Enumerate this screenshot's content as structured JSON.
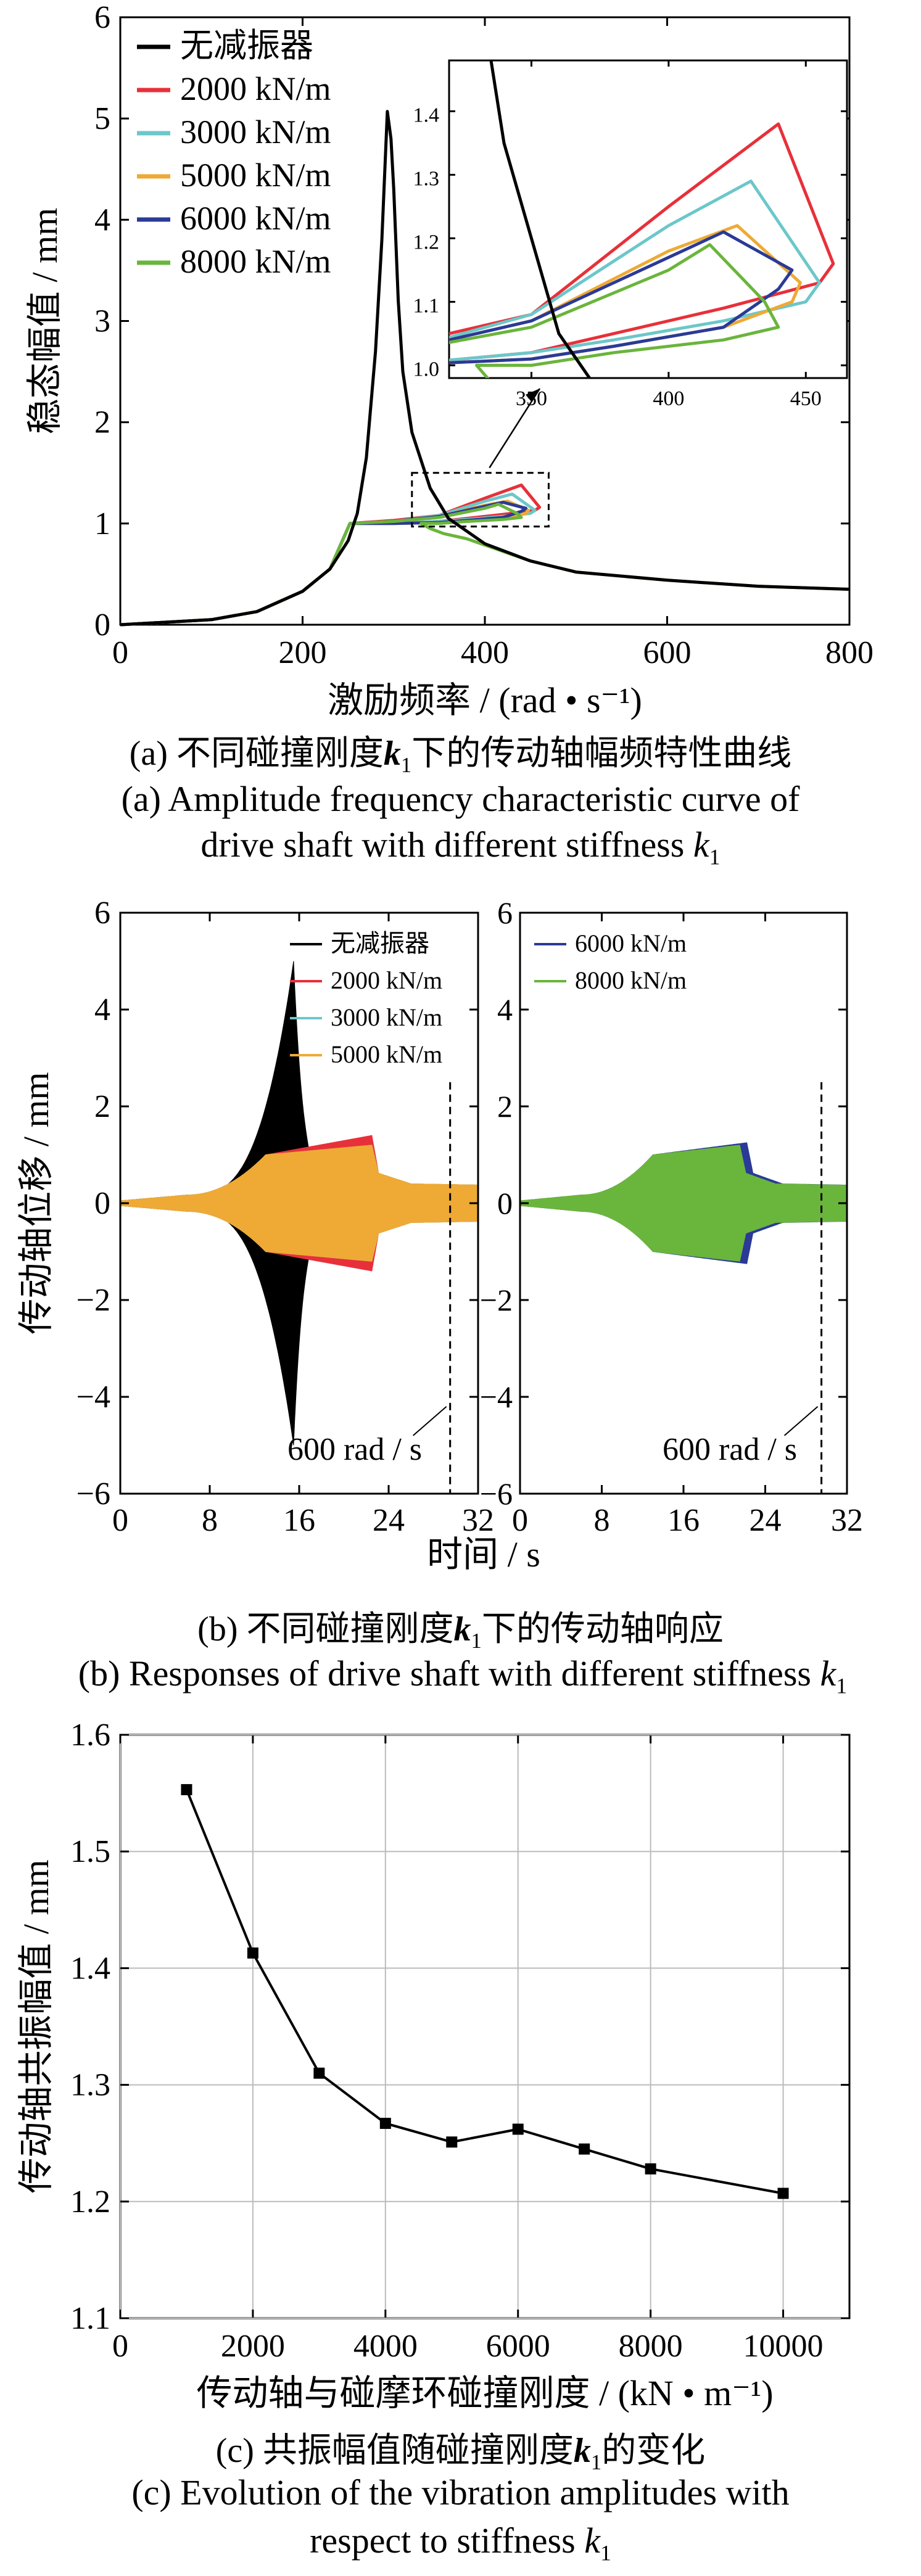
{
  "colors": {
    "none": "#000000",
    "k2000": "#e8303a",
    "k3000": "#6cc7c9",
    "k5000": "#eeaa35",
    "k6000": "#2a3a96",
    "k8000": "#6ab53c"
  },
  "panel_a": {
    "caption_cn_prefix": "(a)  不同碰撞刚度",
    "caption_cn_suffix": "下的传动轴幅频特性曲线",
    "caption_en_line1": "(a) Amplitude frequency characteristic curve of",
    "caption_en_line2": "drive shaft with different stiffness",
    "k_symbol": "k",
    "k_sub": "1"
  },
  "panel_b": {
    "caption_cn_prefix": "(b)  不同碰撞刚度",
    "caption_cn_suffix": "下的传动轴响应",
    "caption_en": "(b) Responses of drive shaft with different stiffness",
    "k_symbol": "k",
    "k_sub": "1"
  },
  "panel_c": {
    "caption_cn_prefix": "(c)  共振幅值随碰撞刚度",
    "caption_cn_suffix": "的变化",
    "caption_en_line1": "(c) Evolution of the vibration amplitudes with",
    "caption_en_line2": "respect to stiffness",
    "k_symbol": "k",
    "k_sub": "1"
  },
  "chart_data": [
    {
      "id": "a",
      "type": "line",
      "xlabel": "激励频率 / (rad • s⁻¹)",
      "ylabel": "稳态幅值 / mm",
      "xlim": [
        0,
        800
      ],
      "ylim": [
        0,
        6
      ],
      "xticks": [
        0,
        200,
        400,
        600,
        800
      ],
      "yticks": [
        0,
        1,
        2,
        3,
        4,
        5,
        6
      ],
      "legend": "top-left",
      "series": [
        {
          "name": "无减振器",
          "color_key": "none",
          "x": [
            0,
            100,
            150,
            200,
            230,
            250,
            260,
            270,
            280,
            287,
            293,
            297,
            300,
            305,
            310,
            320,
            340,
            360,
            400,
            450,
            500,
            600,
            700,
            800
          ],
          "y": [
            0,
            0.05,
            0.13,
            0.33,
            0.55,
            0.83,
            1.1,
            1.65,
            2.7,
            3.8,
            5.07,
            4.8,
            4.3,
            3.2,
            2.5,
            1.9,
            1.35,
            1.05,
            0.8,
            0.63,
            0.52,
            0.44,
            0.38,
            0.35
          ]
        },
        {
          "name": "2000 kN/m",
          "color_key": "k2000",
          "x": [
            0,
            100,
            150,
            200,
            230,
            252,
            300,
            350,
            400,
            440,
            460,
            455,
            420,
            380,
            350,
            300,
            252
          ],
          "y": [
            0,
            0.05,
            0.13,
            0.33,
            0.55,
            1.0,
            1.03,
            1.08,
            1.25,
            1.38,
            1.16,
            1.13,
            1.09,
            1.05,
            1.02,
            1.0,
            1.0
          ]
        },
        {
          "name": "3000 kN/m",
          "color_key": "k3000",
          "x": [
            0,
            100,
            150,
            200,
            230,
            252,
            300,
            350,
            400,
            430,
            455,
            450,
            420,
            380,
            350,
            300,
            252
          ],
          "y": [
            0,
            0.05,
            0.13,
            0.33,
            0.55,
            1.0,
            1.02,
            1.08,
            1.22,
            1.29,
            1.13,
            1.1,
            1.07,
            1.04,
            1.02,
            1.0,
            1.0
          ]
        },
        {
          "name": "5000 kN/m",
          "color_key": "k5000",
          "x": [
            0,
            100,
            150,
            200,
            230,
            252,
            300,
            350,
            400,
            425,
            448,
            445,
            420,
            380,
            350,
            300,
            252
          ],
          "y": [
            0,
            0.05,
            0.13,
            0.33,
            0.55,
            1.0,
            1.02,
            1.07,
            1.18,
            1.22,
            1.13,
            1.1,
            1.06,
            1.03,
            1.01,
            1.0,
            1.0
          ]
        },
        {
          "name": "6000 kN/m",
          "color_key": "k6000",
          "x": [
            0,
            100,
            150,
            200,
            230,
            252,
            300,
            350,
            400,
            420,
            445,
            440,
            420,
            380,
            350,
            300,
            252
          ],
          "y": [
            0,
            0.05,
            0.13,
            0.33,
            0.55,
            1.0,
            1.02,
            1.07,
            1.17,
            1.21,
            1.15,
            1.12,
            1.06,
            1.03,
            1.01,
            1.0,
            1.0
          ]
        },
        {
          "name": "8000 kN/m",
          "color_key": "k8000",
          "x": [
            0,
            100,
            150,
            200,
            230,
            252,
            300,
            350,
            400,
            415,
            435,
            440,
            420,
            380,
            350,
            330,
            340,
            355,
            380,
            450,
            500,
            600,
            700,
            800
          ],
          "y": [
            0,
            0.05,
            0.13,
            0.33,
            0.55,
            1.0,
            1.02,
            1.06,
            1.15,
            1.19,
            1.1,
            1.06,
            1.04,
            1.02,
            1.0,
            1.0,
            0.95,
            0.9,
            0.85,
            0.63,
            0.52,
            0.44,
            0.38,
            0.35
          ]
        }
      ],
      "inset": {
        "xlim": [
          320,
          465
        ],
        "ylim": [
          0.98,
          1.48
        ],
        "xticks": [
          350,
          400,
          450
        ],
        "yticks": [
          1.0,
          1.1,
          1.2,
          1.3,
          1.4
        ]
      }
    },
    {
      "id": "b",
      "type": "area",
      "xlabel": "时间 / s",
      "ylabel": "传动轴位移 / mm",
      "xlim": [
        0,
        32
      ],
      "ylim": [
        -6,
        6
      ],
      "xticks": [
        0,
        8,
        16,
        24,
        32
      ],
      "yticks": [
        -6,
        -4,
        -2,
        0,
        2,
        4,
        6
      ],
      "subplots": [
        {
          "legend": "top-right",
          "series_names": [
            "无减振器",
            "2000 kN/m",
            "3000 kN/m",
            "5000 kN/m"
          ],
          "series_keys": [
            "none",
            "k2000",
            "k3000",
            "k5000"
          ],
          "annotation": "600 rad / s"
        },
        {
          "legend": "top-left",
          "series_names": [
            "6000 kN/m",
            "8000 kN/m"
          ],
          "series_keys": [
            "k6000",
            "k8000"
          ],
          "annotation": "600 rad / s"
        }
      ],
      "envelope_peak": {
        "none": {
          "t": 15.5,
          "amplitude": 5.0
        },
        "k2000": {
          "t": 22.5,
          "amplitude": 1.4
        },
        "k5000": {
          "t": 22.5,
          "amplitude": 1.2
        },
        "k6000": {
          "t": 22.2,
          "amplitude": 1.25
        },
        "k8000": {
          "t": 21.5,
          "amplitude": 1.2
        }
      }
    },
    {
      "id": "c",
      "type": "line",
      "xlabel": "传动轴与碰摩环碰撞刚度 / (kN • m⁻¹)",
      "ylabel": "传动轴共振幅值 / mm",
      "xlim": [
        0,
        11000
      ],
      "ylim": [
        1.1,
        1.6
      ],
      "xticks": [
        0,
        2000,
        4000,
        6000,
        8000,
        10000
      ],
      "yticks": [
        1.1,
        1.2,
        1.3,
        1.4,
        1.5,
        1.6
      ],
      "grid": true,
      "x": [
        1000,
        2000,
        3000,
        4000,
        5000,
        6000,
        7000,
        8000,
        10000
      ],
      "y": [
        1.553,
        1.413,
        1.31,
        1.267,
        1.251,
        1.262,
        1.245,
        1.228,
        1.207
      ]
    }
  ]
}
